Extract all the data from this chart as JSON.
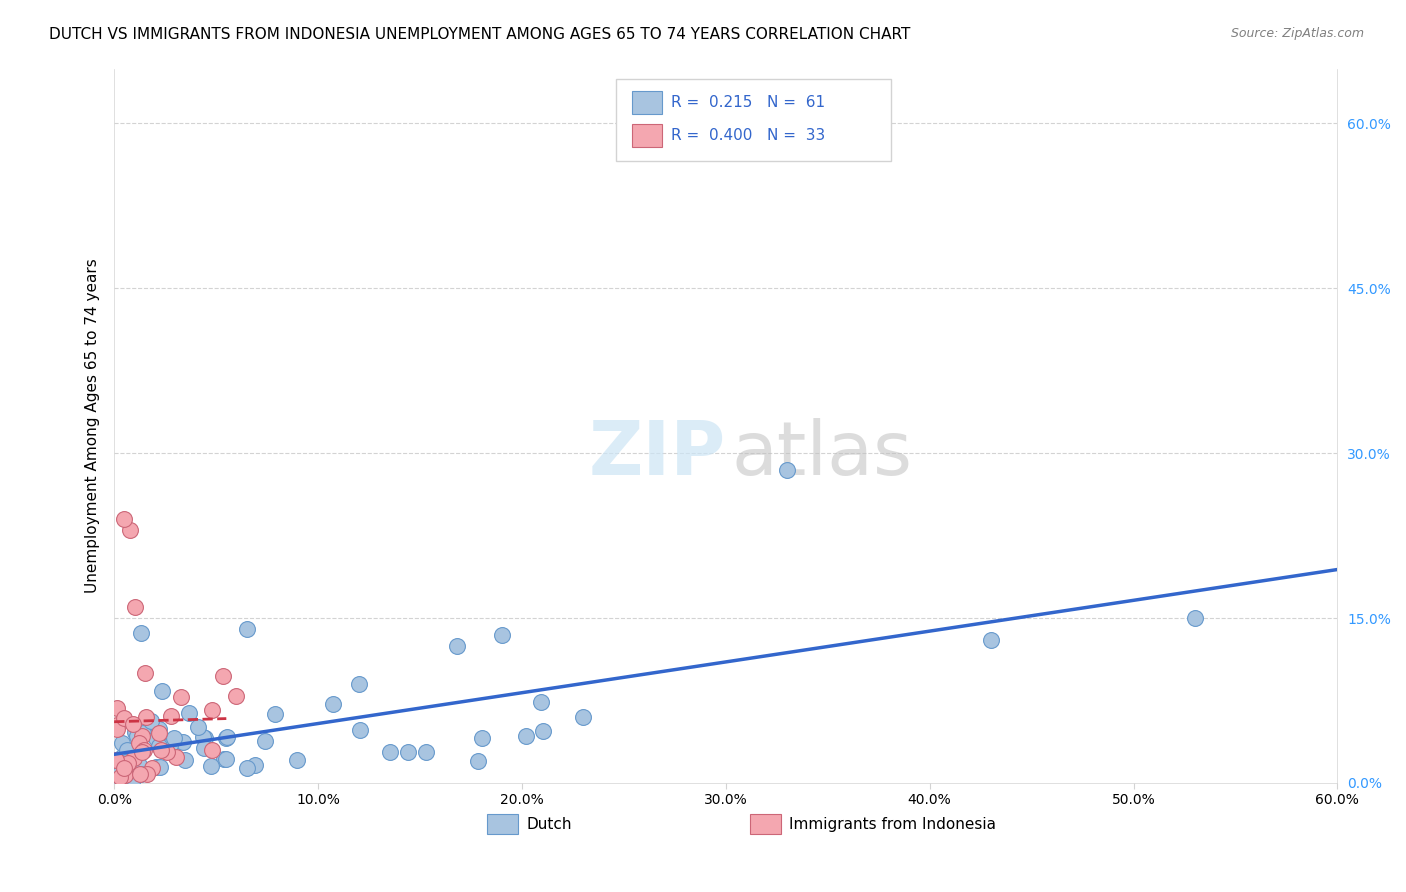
{
  "title": "DUTCH VS IMMIGRANTS FROM INDONESIA UNEMPLOYMENT AMONG AGES 65 TO 74 YEARS CORRELATION CHART",
  "source": "Source: ZipAtlas.com",
  "ylabel": "Unemployment Among Ages 65 to 74 years",
  "xlim": [
    0,
    0.6
  ],
  "ylim": [
    0,
    0.65
  ],
  "xtick_vals": [
    0.0,
    0.1,
    0.2,
    0.3,
    0.4,
    0.5,
    0.6
  ],
  "xticklabels": [
    "0.0%",
    "10.0%",
    "20.0%",
    "30.0%",
    "40.0%",
    "50.0%",
    "60.0%"
  ],
  "ytick_vals": [
    0.0,
    0.15,
    0.3,
    0.45,
    0.6
  ],
  "yticklabels": [
    "0.0%",
    "15.0%",
    "30.0%",
    "45.0%",
    "60.0%"
  ],
  "dutch_color": "#a8c4e0",
  "dutch_edge_color": "#6699cc",
  "indonesia_color": "#f4a7b0",
  "indonesia_edge_color": "#cc6677",
  "regression_dutch_color": "#3366cc",
  "regression_indonesia_color": "#cc3344",
  "legend_r1": "R =  0.215   N =  61",
  "legend_r2": "R =  0.400   N =  33",
  "legend_color": "#3366cc",
  "watermark_zip": "ZIP",
  "watermark_atlas": "atlas",
  "bottom_label1": "Dutch",
  "bottom_label2": "Immigrants from Indonesia"
}
